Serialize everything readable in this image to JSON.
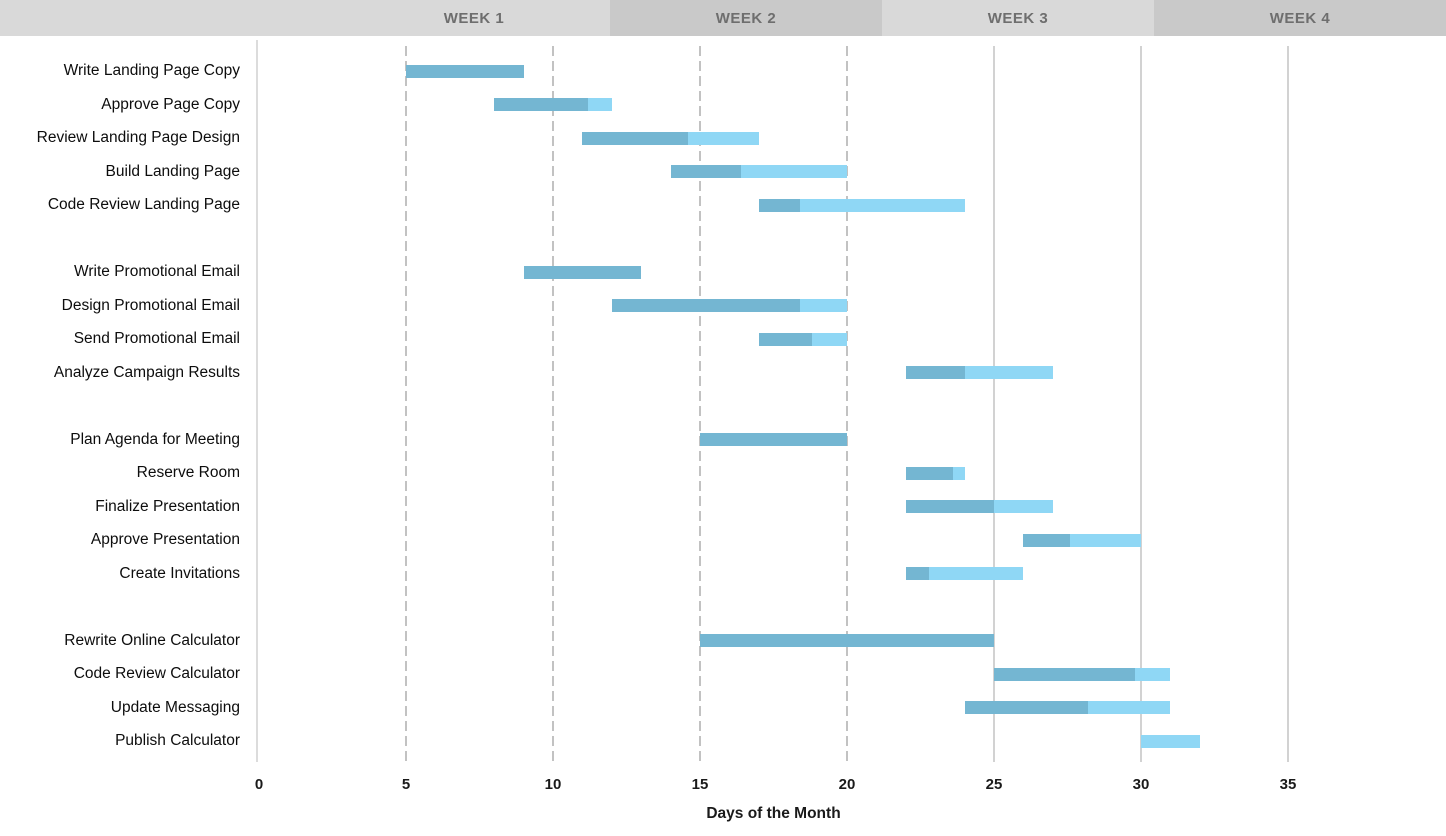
{
  "chart_data": {
    "type": "bar",
    "subtype": "gantt",
    "title": "",
    "xlabel": "Days of the Month",
    "week_headers": [
      "WEEK 1",
      "WEEK 2",
      "WEEK 3",
      "WEEK 4"
    ],
    "x_ticks": [
      0,
      5,
      10,
      15,
      20,
      25,
      30,
      35
    ],
    "xlim": [
      0,
      38
    ],
    "gridlines": {
      "dashed_days": [
        5,
        10,
        15,
        20
      ],
      "solid_days": [
        25,
        30,
        35
      ],
      "axis_day": 0
    },
    "bar_colors": {
      "completed": "#74b6d2",
      "remaining": "#8fd7f5"
    },
    "header_colors": {
      "light": "#d9d9d9",
      "dark": "#c9c9c9"
    },
    "groups": [
      {
        "tasks": [
          {
            "label": "Write Landing Page Copy",
            "start_day": 5,
            "end_day": 9,
            "percent_complete": 100
          },
          {
            "label": "Approve Page Copy",
            "start_day": 8,
            "end_day": 12,
            "percent_complete": 80
          },
          {
            "label": "Review Landing Page Design",
            "start_day": 11,
            "end_day": 17,
            "percent_complete": 60
          },
          {
            "label": "Build Landing Page",
            "start_day": 14,
            "end_day": 20,
            "percent_complete": 40
          },
          {
            "label": "Code Review Landing Page",
            "start_day": 17,
            "end_day": 24,
            "percent_complete": 20
          }
        ]
      },
      {
        "tasks": [
          {
            "label": "Write Promotional Email",
            "start_day": 9,
            "end_day": 13,
            "percent_complete": 100
          },
          {
            "label": "Design Promotional Email",
            "start_day": 12,
            "end_day": 20,
            "percent_complete": 80
          },
          {
            "label": "Send Promotional Email",
            "start_day": 17,
            "end_day": 20,
            "percent_complete": 60
          },
          {
            "label": "Analyze Campaign Results",
            "start_day": 22,
            "end_day": 27,
            "percent_complete": 40
          }
        ]
      },
      {
        "tasks": [
          {
            "label": "Plan Agenda for Meeting",
            "start_day": 15,
            "end_day": 20,
            "percent_complete": 100
          },
          {
            "label": "Reserve Room",
            "start_day": 22,
            "end_day": 24,
            "percent_complete": 80
          },
          {
            "label": "Finalize Presentation",
            "start_day": 22,
            "end_day": 27,
            "percent_complete": 60
          },
          {
            "label": "Approve Presentation",
            "start_day": 26,
            "end_day": 30,
            "percent_complete": 40
          },
          {
            "label": "Create Invitations",
            "start_day": 22,
            "end_day": 26,
            "percent_complete": 20
          }
        ]
      },
      {
        "tasks": [
          {
            "label": "Rewrite Online Calculator",
            "start_day": 15,
            "end_day": 25,
            "percent_complete": 100
          },
          {
            "label": "Code Review Calculator",
            "start_day": 25,
            "end_day": 31,
            "percent_complete": 80
          },
          {
            "label": "Update Messaging",
            "start_day": 24,
            "end_day": 31,
            "percent_complete": 60
          },
          {
            "label": "Publish Calculator",
            "start_day": 30,
            "end_day": 32,
            "percent_complete": 0
          }
        ]
      }
    ]
  }
}
